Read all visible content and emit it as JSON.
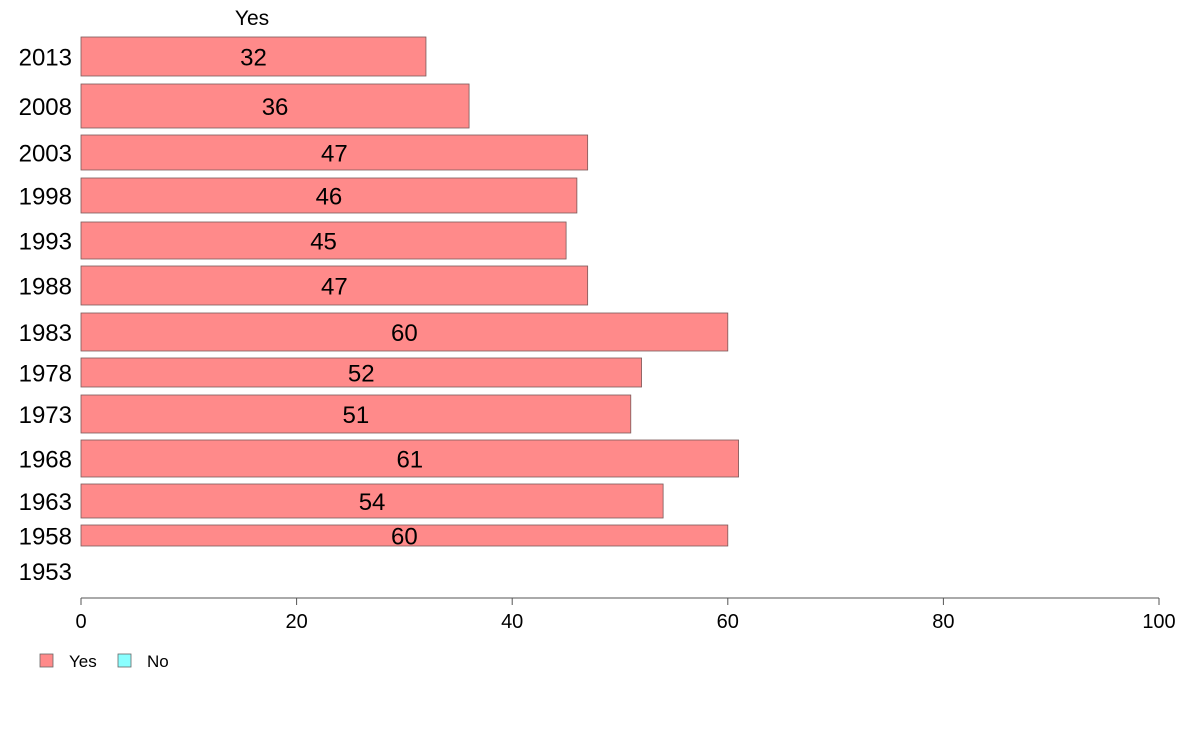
{
  "chart_data": {
    "type": "bar",
    "orientation": "horizontal",
    "title": "",
    "panel_title": "Yes",
    "xlabel": "",
    "ylabel": "",
    "xlim": [
      0,
      100
    ],
    "x_ticks": [
      "0",
      "20",
      "40",
      "60",
      "80",
      "100"
    ],
    "grid": false,
    "categories": [
      "2013",
      "2008",
      "2003",
      "1998",
      "1993",
      "1988",
      "1983",
      "1978",
      "1973",
      "1968",
      "1963",
      "1958",
      "1953"
    ],
    "series": [
      {
        "name": "Yes",
        "color": "#ff8a8a",
        "values": [
          32,
          36,
          47,
          46,
          45,
          47,
          60,
          52,
          51,
          61,
          54,
          60,
          null
        ],
        "value_labels": [
          "32",
          "36",
          "47",
          "46",
          "45",
          "47",
          "60",
          "52",
          "51",
          "61",
          "54",
          "60",
          ""
        ]
      },
      {
        "name": "No",
        "color": "#8affff",
        "values": [
          null,
          null,
          null,
          null,
          null,
          null,
          null,
          null,
          null,
          null,
          null,
          null,
          null
        ]
      }
    ],
    "legend": {
      "placement": "bottom-left",
      "items": [
        {
          "label": "Yes",
          "color": "#ff8a8a"
        },
        {
          "label": "No",
          "color": "#8affff"
        }
      ]
    }
  }
}
